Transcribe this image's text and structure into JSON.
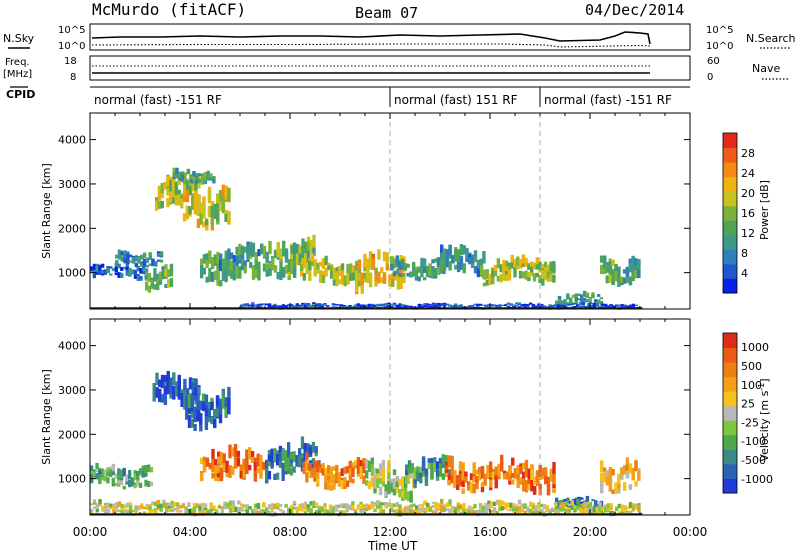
{
  "header": {
    "station": "McMurdo (fitACF)",
    "beam": "Beam 07",
    "date": "04/Dec/2014"
  },
  "side_labels": {
    "nsky": "N.Sky",
    "freq": "Freq.",
    "freq_unit": "[MHz]",
    "cpid": "CPID",
    "nsearch": "N.Search",
    "nave": "Nave"
  },
  "noise_axis": {
    "left_ticks": [
      "10^5",
      "10^0"
    ],
    "right_ticks": [
      "10^5",
      "10^0"
    ]
  },
  "freq_axis": {
    "left_ticks": [
      "18",
      "8"
    ],
    "right_ticks": [
      "60",
      "0"
    ]
  },
  "cpid_segments": [
    {
      "start_hour": 0,
      "end_hour": 12,
      "label": "normal (fast) -151 RF"
    },
    {
      "start_hour": 12,
      "end_hour": 18,
      "label": "normal (fast) 151 RF"
    },
    {
      "start_hour": 18,
      "end_hour": 24,
      "label": "normal (fast) -151 RF"
    }
  ],
  "chart_data": [
    {
      "type": "heatmap",
      "name": "power",
      "ylabel": "Slant Range [km]",
      "xlabel": "Time UT",
      "x_ticks": [
        "00:00",
        "04:00",
        "08:00",
        "12:00",
        "16:00",
        "20:00",
        "00:00"
      ],
      "x_range_hours": [
        0,
        24
      ],
      "y_ticks": [
        1000,
        2000,
        3000,
        4000
      ],
      "y_range_km": [
        180,
        4600
      ],
      "data_end_hour": 22.1,
      "colorbar": {
        "label": "Power [dB]",
        "ticks": [
          4,
          8,
          12,
          16,
          20,
          24,
          28
        ],
        "range": [
          0,
          32
        ],
        "colors": [
          "#0a1fe8",
          "#1f55d0",
          "#2f7fb8",
          "#3e9a86",
          "#4fa45a",
          "#7cb23a",
          "#c8c21c",
          "#f1b10e",
          "#f28a14",
          "#ee5c18",
          "#e2291a"
        ]
      },
      "blobs": [
        {
          "t0": 0.0,
          "t1": 2.3,
          "r0": 850,
          "r1": 1150,
          "level": 0.15
        },
        {
          "t0": 1.0,
          "t1": 2.9,
          "r0": 1150,
          "r1": 1450,
          "level": 0.25
        },
        {
          "t0": 2.2,
          "t1": 3.3,
          "r0": 600,
          "r1": 1100,
          "level": 0.4
        },
        {
          "t0": 2.6,
          "t1": 4.4,
          "r0": 2400,
          "r1": 3100,
          "level": 0.55
        },
        {
          "t0": 3.6,
          "t1": 5.6,
          "r0": 2050,
          "r1": 2900,
          "level": 0.6
        },
        {
          "t0": 3.3,
          "t1": 5.0,
          "r0": 3000,
          "r1": 3300,
          "level": 0.35
        },
        {
          "t0": 4.4,
          "t1": 6.8,
          "r0": 750,
          "r1": 1500,
          "level": 0.35
        },
        {
          "t0": 6.8,
          "t1": 9.0,
          "r0": 900,
          "r1": 1700,
          "level": 0.45
        },
        {
          "t0": 8.4,
          "t1": 10.8,
          "r0": 700,
          "r1": 1250,
          "level": 0.55
        },
        {
          "t0": 10.6,
          "t1": 12.6,
          "r0": 550,
          "r1": 1350,
          "level": 0.65
        },
        {
          "t0": 12.0,
          "t1": 14.2,
          "r0": 850,
          "r1": 1300,
          "level": 0.35
        },
        {
          "t0": 14.0,
          "t1": 15.8,
          "r0": 950,
          "r1": 1500,
          "level": 0.3
        },
        {
          "t0": 15.6,
          "t1": 18.6,
          "r0": 750,
          "r1": 1250,
          "level": 0.55
        },
        {
          "t0": 18.6,
          "t1": 20.5,
          "r0": 250,
          "r1": 500,
          "level": 0.35
        },
        {
          "t0": 20.4,
          "t1": 22.0,
          "r0": 750,
          "r1": 1350,
          "level": 0.4
        },
        {
          "t0": 6.0,
          "t1": 22.0,
          "r0": 180,
          "r1": 300,
          "level": 0.1
        }
      ]
    },
    {
      "type": "heatmap",
      "name": "velocity",
      "ylabel": "Slant Range [km]",
      "xlabel": "Time UT",
      "x_ticks": [
        "00:00",
        "04:00",
        "08:00",
        "12:00",
        "16:00",
        "20:00",
        "00:00"
      ],
      "x_range_hours": [
        0,
        24
      ],
      "y_ticks": [
        1000,
        2000,
        3000,
        4000
      ],
      "y_range_km": [
        180,
        4600
      ],
      "data_end_hour": 22.1,
      "colorbar": {
        "label": "Velocity [m s^-1]",
        "ticks": [
          "1000",
          "500",
          "100",
          "25",
          "-25",
          "-100",
          "-500",
          "-1000"
        ],
        "colors": [
          "#1f3bd8",
          "#2d62b8",
          "#3b8a86",
          "#4caa4a",
          "#7fc63a",
          "#b8b8b8",
          "#f6c21a",
          "#f5a016",
          "#f07f12",
          "#ec5a14",
          "#e02a18"
        ]
      },
      "blobs": [
        {
          "t0": 0.0,
          "t1": 2.5,
          "r0": 800,
          "r1": 1250,
          "level": 0.35
        },
        {
          "t0": 2.5,
          "t1": 4.4,
          "r0": 2450,
          "r1": 3250,
          "level": 0.1
        },
        {
          "t0": 3.8,
          "t1": 5.6,
          "r0": 2100,
          "r1": 2900,
          "level": 0.12
        },
        {
          "t0": 4.4,
          "t1": 7.0,
          "r0": 900,
          "r1": 1600,
          "level": 0.8
        },
        {
          "t0": 7.0,
          "t1": 9.2,
          "r0": 950,
          "r1": 1700,
          "level": 0.2
        },
        {
          "t0": 8.5,
          "t1": 11.0,
          "r0": 800,
          "r1": 1400,
          "level": 0.75
        },
        {
          "t0": 11.0,
          "t1": 13.0,
          "r0": 550,
          "r1": 1300,
          "level": 0.45
        },
        {
          "t0": 12.6,
          "t1": 14.4,
          "r0": 800,
          "r1": 1400,
          "level": 0.25
        },
        {
          "t0": 14.2,
          "t1": 18.6,
          "r0": 700,
          "r1": 1350,
          "level": 0.8
        },
        {
          "t0": 18.6,
          "t1": 20.5,
          "r0": 250,
          "r1": 550,
          "level": 0.2
        },
        {
          "t0": 20.4,
          "t1": 22.0,
          "r0": 700,
          "r1": 1350,
          "level": 0.6
        },
        {
          "t0": 0.0,
          "t1": 22.0,
          "r0": 180,
          "r1": 450,
          "level": 0.5
        }
      ]
    }
  ]
}
